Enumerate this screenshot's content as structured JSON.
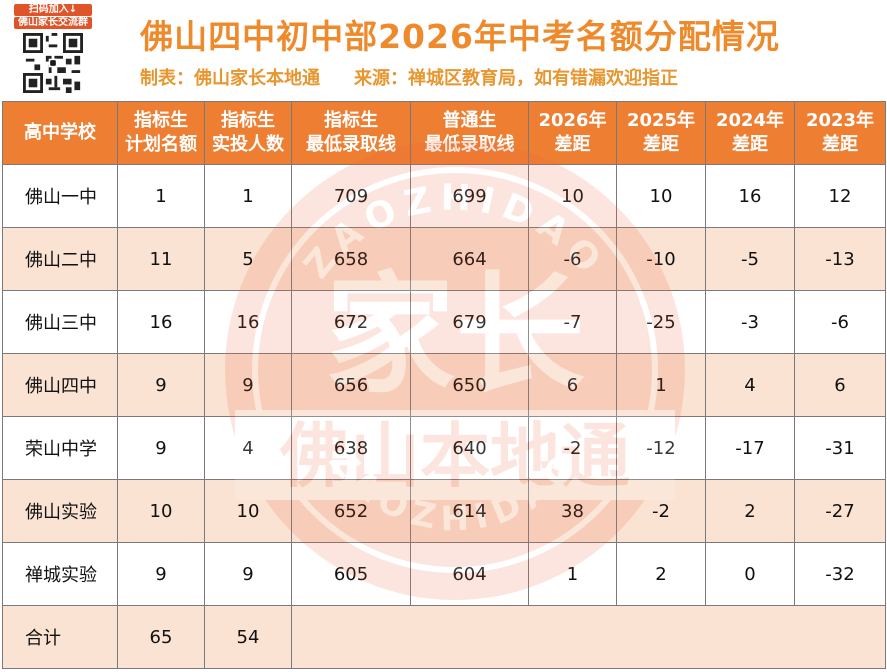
{
  "header": {
    "qr_caption_line1": "扫码加入↓",
    "qr_caption_line2": "佛山家长交流群",
    "title": "佛山四中初中部2026年中考名额分配情况",
    "subtitle_maker": "制表：佛山家长本地通",
    "subtitle_source": "来源：禅城区教育局，如有错漏欢迎指正"
  },
  "watermark": {
    "center_text": "家长",
    "arc_top": "ZAOZHIDAO",
    "band_text": "佛山本地通",
    "arc_bottom": "ZAOZHIDAO"
  },
  "table": {
    "headers": [
      {
        "line1": "高中学校",
        "line2": ""
      },
      {
        "line1": "指标生",
        "line2": "计划名额"
      },
      {
        "line1": "指标生",
        "line2": "实投人数"
      },
      {
        "line1": "指标生",
        "line2": "最低录取线"
      },
      {
        "line1": "普通生",
        "line2": "最低录取线"
      },
      {
        "line1": "2026年",
        "line2": "差距"
      },
      {
        "line1": "2025年",
        "line2": "差距"
      },
      {
        "line1": "2024年",
        "line2": "差距"
      },
      {
        "line1": "2023年",
        "line2": "差距"
      }
    ],
    "rows": [
      [
        "佛山一中",
        "1",
        "1",
        "709",
        "699",
        "10",
        "10",
        "16",
        "12"
      ],
      [
        "佛山二中",
        "11",
        "5",
        "658",
        "664",
        "-6",
        "-10",
        "-5",
        "-13"
      ],
      [
        "佛山三中",
        "16",
        "16",
        "672",
        "679",
        "-7",
        "-25",
        "-3",
        "-6"
      ],
      [
        "佛山四中",
        "9",
        "9",
        "656",
        "650",
        "6",
        "1",
        "4",
        "6"
      ],
      [
        "荣山中学",
        "9",
        "4",
        "638",
        "640",
        "-2",
        "-12",
        "-17",
        "-31"
      ],
      [
        "佛山实验",
        "10",
        "10",
        "652",
        "614",
        "38",
        "-2",
        "2",
        "-27"
      ],
      [
        "禅城实验",
        "9",
        "9",
        "605",
        "604",
        "1",
        "2",
        "0",
        "-32"
      ]
    ],
    "total": {
      "label": "合计",
      "plan": "65",
      "actual": "54"
    }
  },
  "colors": {
    "header_bg": "#ee7e32",
    "alt_row": "#fbe3d3",
    "title": "#ee8a2b"
  }
}
